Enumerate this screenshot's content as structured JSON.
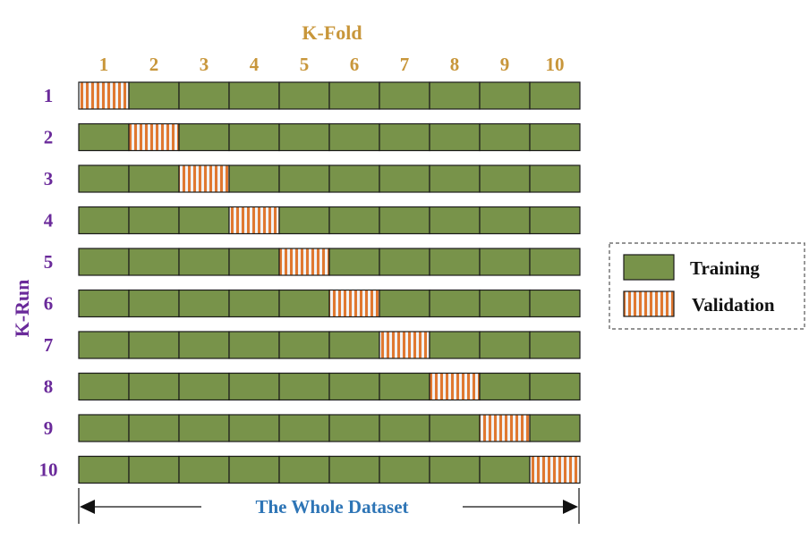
{
  "top_axis": {
    "title": "K-Fold",
    "fold_labels": [
      "1",
      "2",
      "3",
      "4",
      "5",
      "6",
      "7",
      "8",
      "9",
      "10"
    ]
  },
  "side_axis": {
    "title": "K-Run",
    "run_labels": [
      "1",
      "2",
      "3",
      "4",
      "5",
      "6",
      "7",
      "8",
      "9",
      "10"
    ]
  },
  "grid": {
    "runs": 10,
    "folds": 10,
    "validation_fold_per_run": [
      1,
      2,
      3,
      4,
      5,
      6,
      7,
      8,
      9,
      10
    ]
  },
  "legend": {
    "training_label": "Training",
    "validation_label": "Validation"
  },
  "dataset_span_label": "The Whole Dataset",
  "colors": {
    "training": "#78934a",
    "validation_fill": "#f2f2f2",
    "validation_stripe": "#e07830",
    "axis_title": "#c8963a",
    "run_labels": "#6a2a9a",
    "dataset_label": "#2e75b6",
    "cell_border": "#1a1a1a",
    "legend_border": "#555555"
  }
}
